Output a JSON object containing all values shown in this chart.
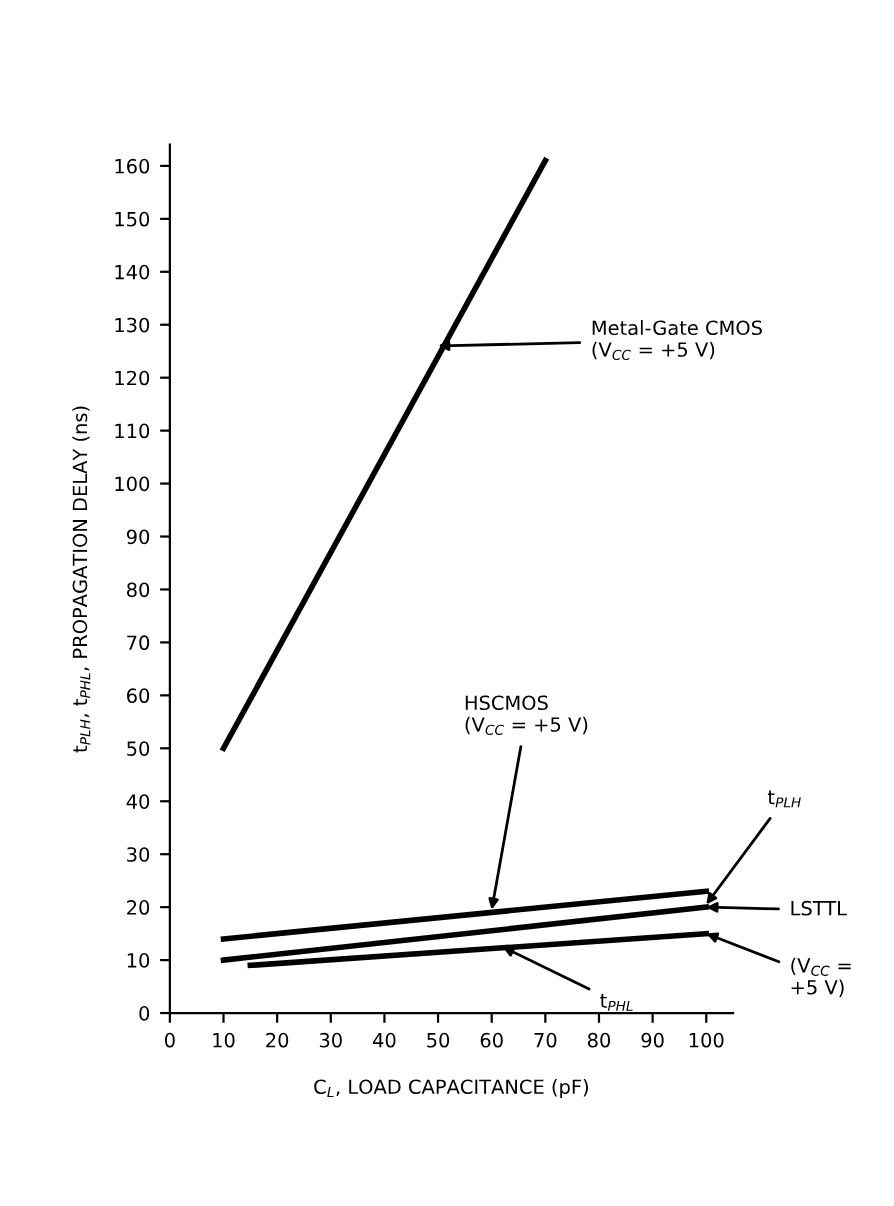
{
  "chart_data": {
    "type": "line",
    "xlabel": "C$_{L}$, LOAD CAPACITANCE (pF)",
    "ylabel": "t$_{PLH}$, t$_{PHL}$, PROPAGATION DELAY (ns)",
    "series": [
      {
        "color": "#000000",
        "x": [
          10,
          70
        ],
        "values": [
          50,
          161
        ]
      },
      {
        "color": "#000000",
        "x": [
          10,
          100
        ],
        "values": [
          14,
          23
        ]
      },
      {
        "color": "#000000",
        "x": [
          10,
          100
        ],
        "values": [
          10,
          20
        ]
      },
      {
        "color": "#000000",
        "x": [
          15,
          100
        ],
        "values": [
          9,
          15
        ]
      }
    ],
    "xlim": [
      0,
      105
    ],
    "ylim": [
      0,
      164
    ],
    "xticks": [
      0,
      10,
      20,
      30,
      40,
      50,
      60,
      70,
      80,
      90,
      100
    ],
    "yticks": [
      0,
      10,
      20,
      30,
      40,
      50,
      60,
      70,
      80,
      90,
      100,
      110,
      120,
      130,
      140,
      150,
      160
    ],
    "grid": false,
    "marker": "none",
    "line_style": "solid",
    "annotations": [
      {
        "text": "Metal-Gate CMOS\n(V$_{CC}$ = +5 V)",
        "x": 50,
        "y": 126
      },
      {
        "text": "HSCMOS\n(V$_{CC}$ = +5 V)",
        "x": 60,
        "y": 19.5
      },
      {
        "text": "t$_{PLH}$",
        "x": 100,
        "y": 20.5
      },
      "LSTTL",
      {
        "text": "(V$_{CC}$ =\n+5 V)",
        "x": 100,
        "y": 15
      },
      {
        "text": "t$_{PHL}$",
        "x": 62,
        "y": 12.5
      }
    ]
  }
}
